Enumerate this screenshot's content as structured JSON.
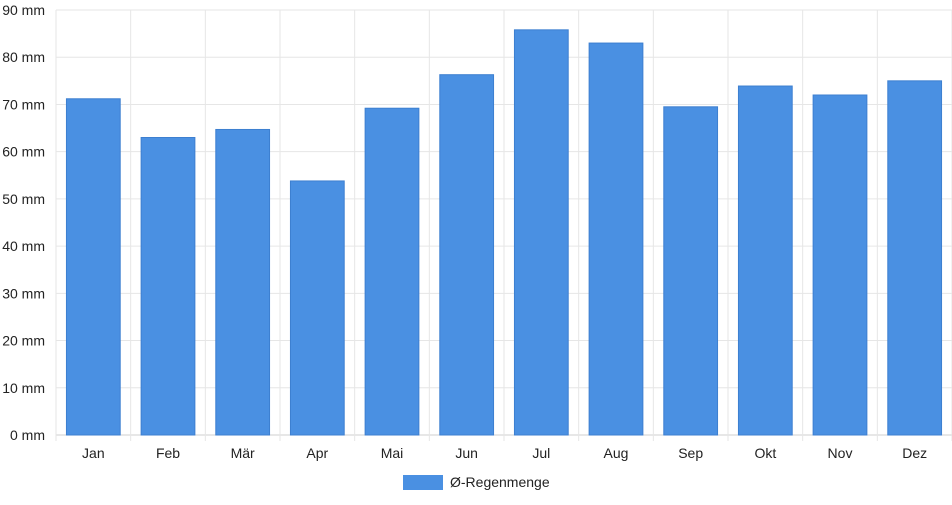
{
  "chart_data": {
    "type": "bar",
    "categories": [
      "Jan",
      "Feb",
      "Mär",
      "Apr",
      "Mai",
      "Jun",
      "Jul",
      "Aug",
      "Sep",
      "Okt",
      "Nov",
      "Dez"
    ],
    "series": [
      {
        "name": "Ø-Regenmenge",
        "values": [
          71.2,
          63.0,
          64.7,
          53.8,
          69.2,
          76.3,
          85.8,
          83.0,
          69.5,
          73.9,
          72.0,
          75.0
        ],
        "color": "#4a90e2"
      }
    ],
    "yticks": [
      "0 mm",
      "10 mm",
      "20 mm",
      "30 mm",
      "40 mm",
      "50 mm",
      "60 mm",
      "70 mm",
      "80 mm",
      "90 mm"
    ],
    "ylim": [
      0,
      90
    ],
    "grid": true,
    "legend": {
      "position": "bottom",
      "label": "Ø-Regenmenge"
    }
  }
}
